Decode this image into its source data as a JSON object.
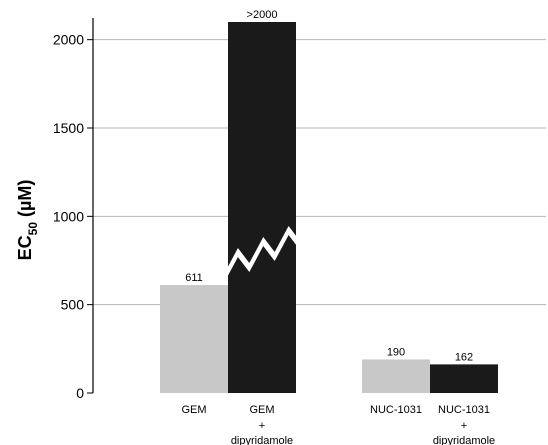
{
  "chart_data": {
    "type": "bar",
    "title": "",
    "xlabel": "",
    "ylabel": {
      "prefix": "EC",
      "subscript": "50",
      "suffix": " (µM)"
    },
    "ylim": [
      0,
      2100
    ],
    "yticks": [
      0,
      500,
      1000,
      1500,
      2000
    ],
    "grid": true,
    "bars": [
      {
        "label_lines": [
          "GEM"
        ],
        "value": 611,
        "display_value": "611",
        "color": "#c8c8c8",
        "group": 0
      },
      {
        "label_lines": [
          "GEM",
          "+",
          "dipyridamole"
        ],
        "value": 2100,
        "display_value": ">2000",
        "color": "#1a1a1a",
        "group": 0,
        "axis_break": true
      },
      {
        "label_lines": [
          "NUC-1031"
        ],
        "value": 190,
        "display_value": "190",
        "color": "#c8c8c8",
        "group": 1
      },
      {
        "label_lines": [
          "NUC-1031",
          "+",
          "dipyridamole"
        ],
        "value": 162,
        "display_value": "162",
        "color": "#1a1a1a",
        "group": 1
      }
    ],
    "colors": {
      "axis": "#000000",
      "grid": "#b4b4b4",
      "break_fill": "#ffffff"
    }
  }
}
